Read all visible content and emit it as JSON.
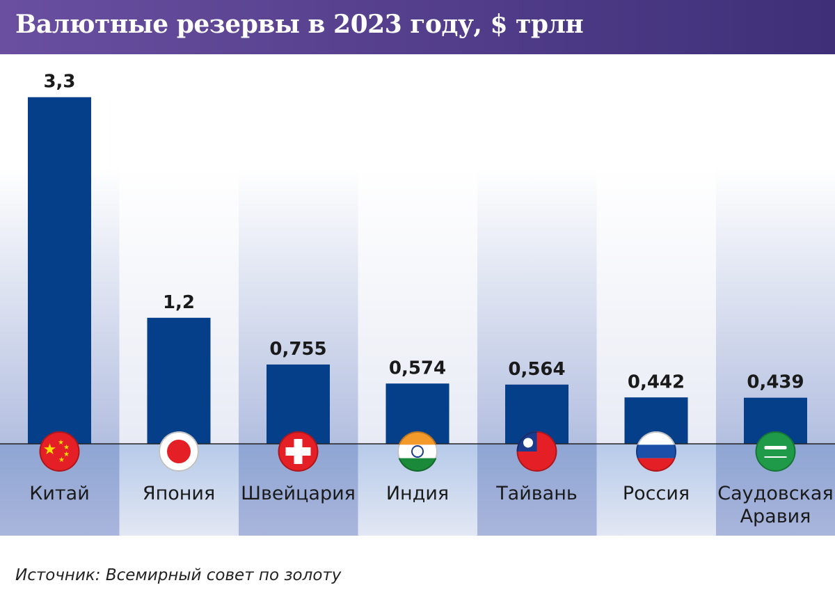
{
  "chart_data": {
    "type": "bar",
    "title": "Валютные резервы в 2023 году, $ трлн",
    "categories": [
      "Китай",
      "Япония",
      "Швейцария",
      "Индия",
      "Тайвань",
      "Россия",
      "Саудовская Аравия"
    ],
    "value_labels": [
      "3,3",
      "1,2",
      "0,755",
      "0,574",
      "0,564",
      "0,442",
      "0,439"
    ],
    "values": [
      3.3,
      1.2,
      0.755,
      0.574,
      0.564,
      0.442,
      0.439
    ],
    "flags": [
      "china-flag-icon",
      "japan-flag-icon",
      "switzerland-flag-icon",
      "india-flag-icon",
      "taiwan-flag-icon",
      "russia-flag-icon",
      "saudi-arabia-flag-icon"
    ],
    "bar_color": "#053f8a",
    "grid": false,
    "source": "Источник: Всемирный совет по золоту"
  }
}
